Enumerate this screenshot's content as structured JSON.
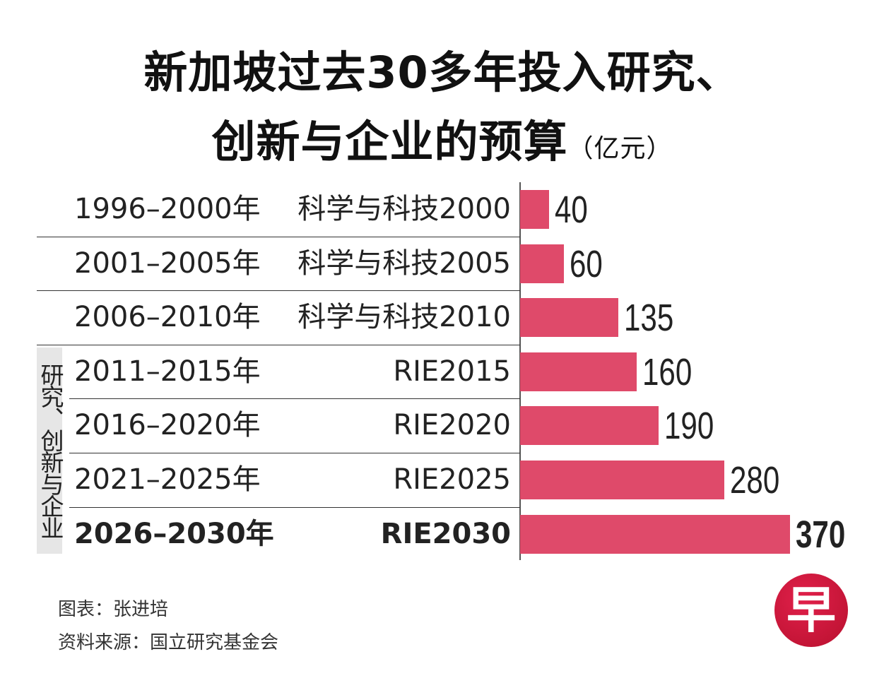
{
  "title": {
    "line1": "新加坡过去30多年投入研究、",
    "line2": "创新与企业的预算",
    "unit": "（亿元）"
  },
  "group_label": "研究、创新与企业",
  "chart_data": {
    "type": "bar",
    "orientation": "horizontal",
    "title": "新加坡过去30多年投入研究、创新与企业的预算（亿元）",
    "categories": [
      "1996–2000年",
      "2001–2005年",
      "2006–2010年",
      "2011–2015年",
      "2016–2020年",
      "2021–2025年",
      "2026–2030年"
    ],
    "programs": [
      "科学与科技2000",
      "科学与科技2005",
      "科学与科技2010",
      "RIE2015",
      "RIE2020",
      "RIE2025",
      "RIE2030"
    ],
    "values": [
      40,
      60,
      135,
      160,
      190,
      280,
      370
    ],
    "value_labels": [
      "40",
      "60",
      "135",
      "160",
      "190",
      "280",
      "370"
    ],
    "highlight_index": 6,
    "bar_color": "#df4a6a",
    "xlim": [
      0,
      370
    ],
    "grid": false
  },
  "footer": {
    "credit": "图表：张进培",
    "source": "资料来源：国立研究基金会"
  },
  "logo": {
    "text": "早",
    "color": "#c8143a"
  }
}
